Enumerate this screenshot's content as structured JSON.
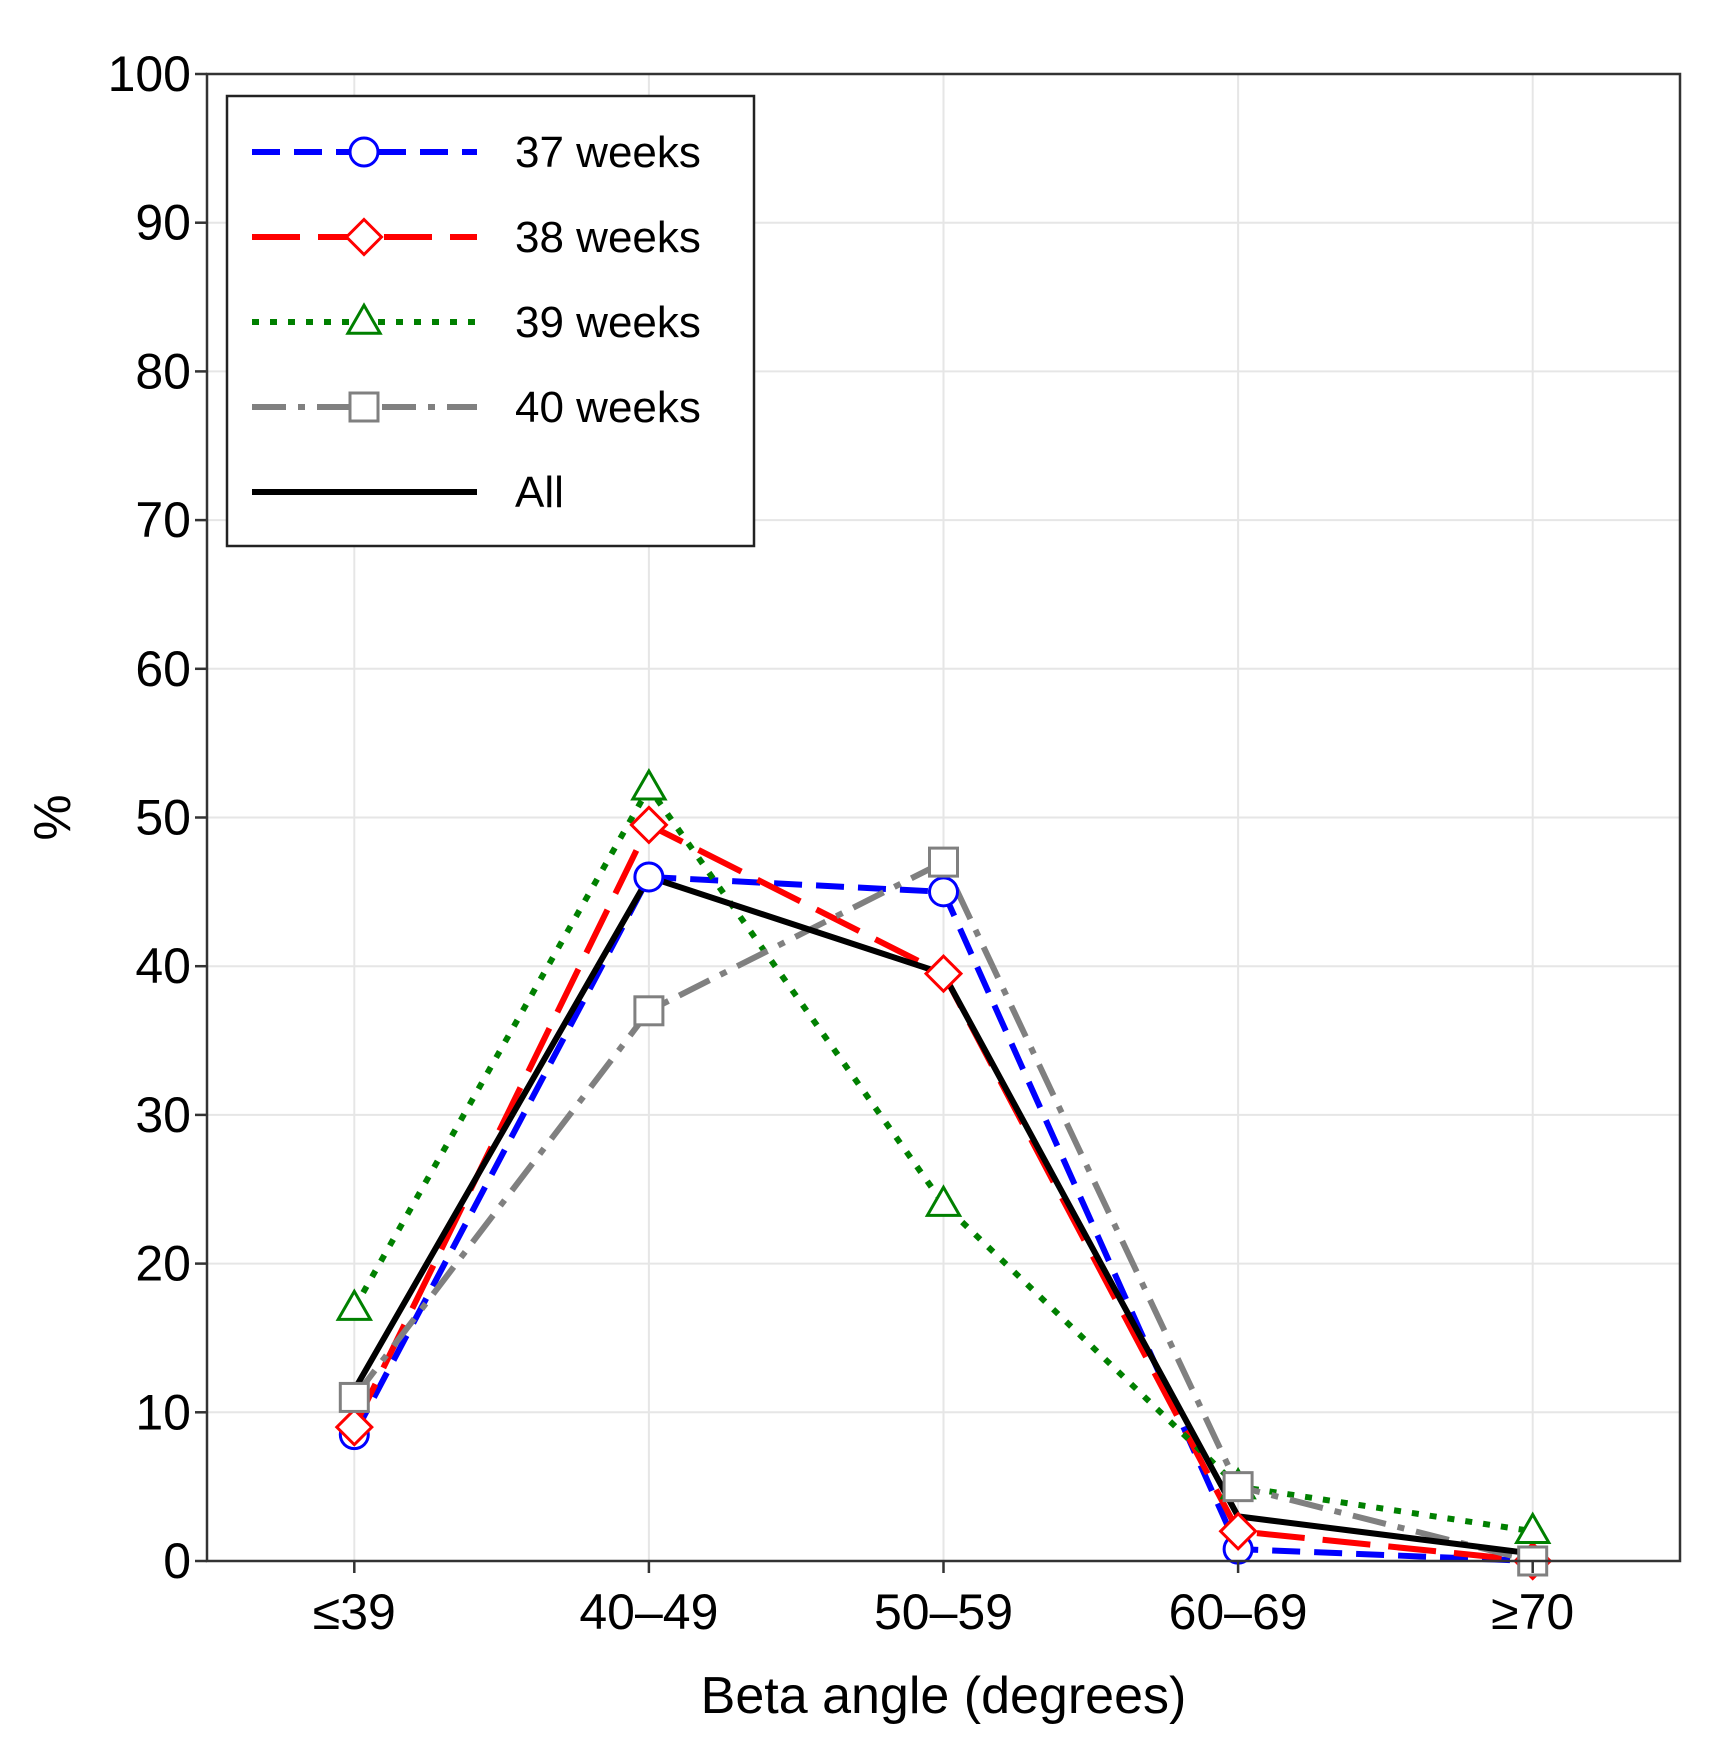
{
  "chart_data": {
    "type": "line",
    "title": "",
    "xlabel": "Beta angle (degrees)",
    "ylabel": "%",
    "categories": [
      "≤39",
      "40–49",
      "50–59",
      "60–69",
      "≥70"
    ],
    "ylim": [
      0,
      100
    ],
    "yticks": [
      0,
      10,
      20,
      30,
      40,
      50,
      60,
      70,
      80,
      90,
      100
    ],
    "grid": true,
    "legend_position": "top-left",
    "series": [
      {
        "name": "37 weeks",
        "values": [
          8.5,
          46,
          45,
          0.8,
          0
        ],
        "color": "#0000ff",
        "dash": "dashed",
        "marker": "circle"
      },
      {
        "name": "38 weeks",
        "values": [
          9,
          49.5,
          39.5,
          2,
          0
        ],
        "color": "#ff0000",
        "dash": "longdash",
        "marker": "diamond"
      },
      {
        "name": "39 weeks",
        "values": [
          17,
          52,
          24,
          5,
          2
        ],
        "color": "#008000",
        "dash": "dotted",
        "marker": "triangle"
      },
      {
        "name": "40 weeks",
        "values": [
          11,
          37,
          47,
          5,
          0
        ],
        "color": "#808080",
        "dash": "dashdot",
        "marker": "square"
      },
      {
        "name": "All",
        "values": [
          11.5,
          46,
          39.5,
          3,
          0.5
        ],
        "color": "#000000",
        "dash": "solid",
        "marker": "none"
      }
    ]
  }
}
